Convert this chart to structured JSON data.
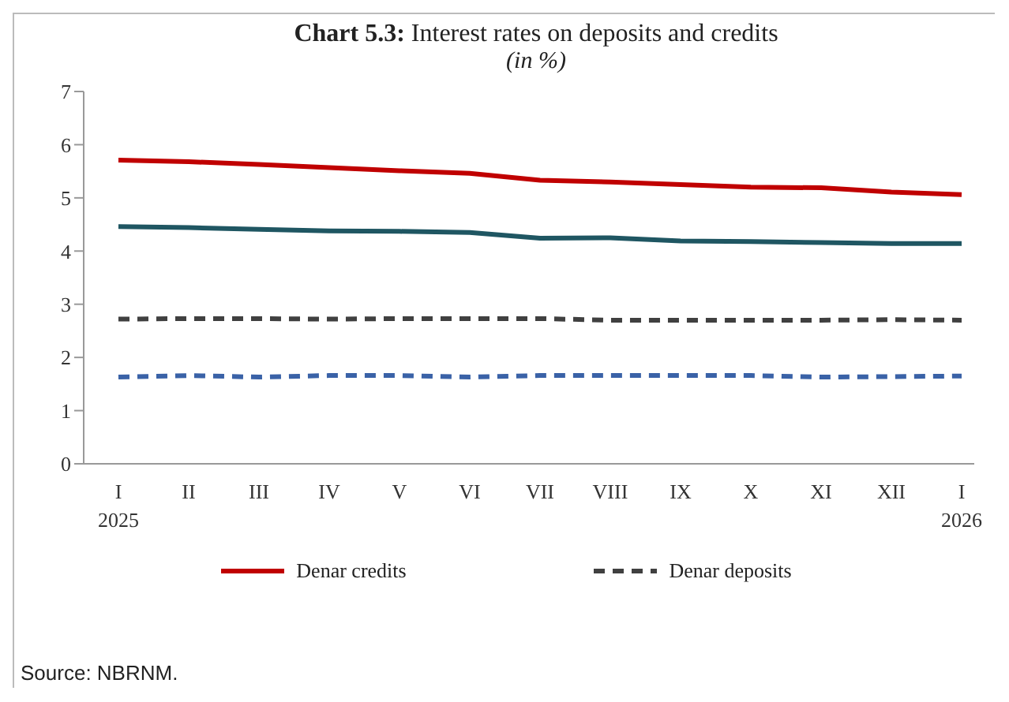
{
  "chart_data": {
    "type": "line",
    "title": "Chart 5.3: Interest rates on deposits and credits",
    "subtitle": "(in %)",
    "categories": [
      "I\n2025",
      "II",
      "III",
      "IV",
      "V",
      "VI",
      "VII",
      "VIII",
      "IX",
      "X",
      "XI",
      "XII",
      "I\n2026"
    ],
    "series": [
      {
        "name": "Denar credits",
        "color": "#c00000",
        "line_style": "solid",
        "values": [
          5.71,
          5.68,
          5.63,
          5.57,
          5.51,
          5.46,
          5.33,
          5.3,
          5.25,
          5.2,
          5.19,
          5.11,
          5.06
        ]
      },
      {
        "color": "#1f5662",
        "line_style": "solid",
        "values": [
          4.46,
          4.44,
          4.41,
          4.38,
          4.37,
          4.35,
          4.24,
          4.25,
          4.19,
          4.18,
          4.16,
          4.14,
          4.14
        ]
      },
      {
        "name": "Denar deposits",
        "color": "#404040",
        "line_style": "dashed",
        "values": [
          2.72,
          2.73,
          2.73,
          2.72,
          2.73,
          2.73,
          2.73,
          2.7,
          2.7,
          2.7,
          2.7,
          2.71,
          2.7
        ]
      },
      {
        "color": "#3a62a7",
        "line_style": "dashed",
        "values": [
          1.63,
          1.66,
          1.63,
          1.66,
          1.66,
          1.63,
          1.66,
          1.66,
          1.66,
          1.66,
          1.63,
          1.64,
          1.65
        ]
      }
    ],
    "ylim": [
      0,
      7
    ],
    "yticks": [
      0,
      1,
      2,
      3,
      4,
      5,
      6,
      7
    ],
    "marker": "none",
    "legend": "bottom",
    "annotations": [
      "Source: NBRNM."
    ]
  }
}
